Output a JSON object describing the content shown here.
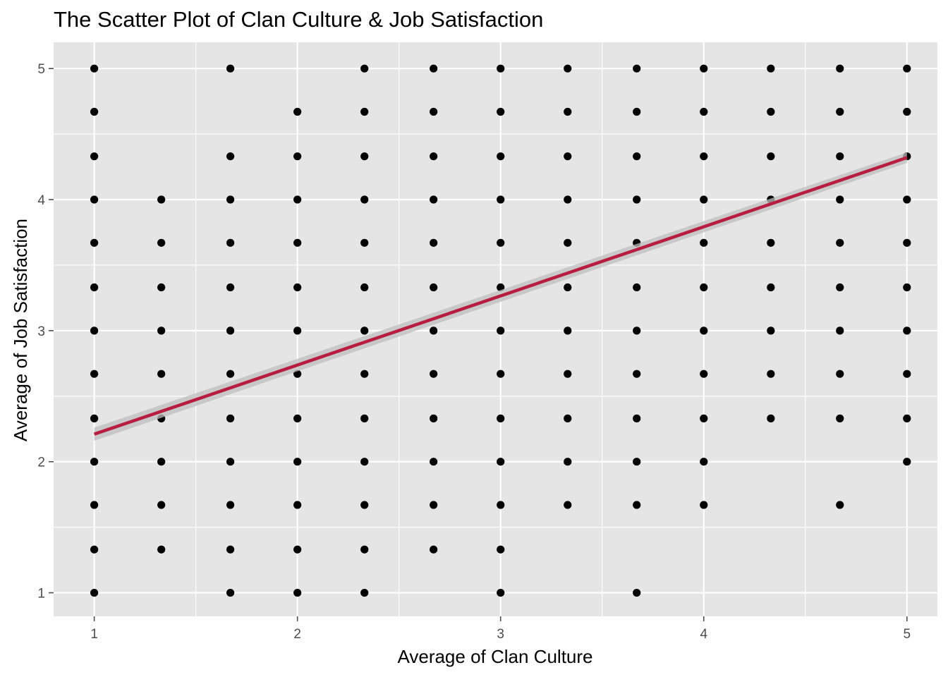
{
  "chart_data": {
    "type": "scatter",
    "title": "The Scatter Plot of Clan Culture & Job Satisfaction",
    "xlabel": "Average of Clan Culture",
    "ylabel": "Average of Job Satisfaction",
    "xlim": [
      0.8,
      5.15
    ],
    "ylim": [
      0.82,
      5.2
    ],
    "x_ticks": [
      1,
      2,
      3,
      4,
      5
    ],
    "y_ticks": [
      1,
      2,
      3,
      4,
      5
    ],
    "x_tick_labels": [
      "1",
      "2",
      "3",
      "4",
      "5"
    ],
    "y_tick_labels": [
      "1",
      "2",
      "3",
      "4",
      "5"
    ],
    "grid": true,
    "legend": "none",
    "colors": {
      "panel": "#e5e5e5",
      "grid": "#ffffff",
      "point": "#000000",
      "fit_line": "#b81d3f",
      "ci_band": "#bdbdbd",
      "tick": "#4d4d4d"
    },
    "points": [
      {
        "x": 1,
        "y": [
          5,
          4.67,
          4.33,
          4,
          3.67,
          3.33,
          3,
          2.67,
          2.33,
          2,
          1.67,
          1.33,
          1
        ]
      },
      {
        "x": 1.33,
        "y": [
          4,
          3.67,
          3.33,
          3,
          2.67,
          2.33,
          2,
          1.67,
          1.33
        ]
      },
      {
        "x": 1.67,
        "y": [
          5,
          4.33,
          4,
          3.67,
          3.33,
          3,
          2.67,
          2.33,
          2,
          1.67,
          1.33,
          1
        ]
      },
      {
        "x": 2,
        "y": [
          4.67,
          4.33,
          4,
          3.67,
          3.33,
          3,
          2.67,
          2.33,
          2,
          1.67,
          1.33,
          1
        ]
      },
      {
        "x": 2.33,
        "y": [
          5,
          4.67,
          4.33,
          4,
          3.67,
          3.33,
          3,
          2.67,
          2.33,
          2,
          1.67,
          1.33,
          1
        ]
      },
      {
        "x": 2.67,
        "y": [
          5,
          4.67,
          4.33,
          4,
          3.67,
          3.33,
          3,
          2.67,
          2.33,
          2,
          1.67,
          1.33
        ]
      },
      {
        "x": 3,
        "y": [
          5,
          4.67,
          4.33,
          4,
          3.67,
          3.33,
          3,
          2.67,
          2.33,
          2,
          1.67,
          1.33,
          1
        ]
      },
      {
        "x": 3.33,
        "y": [
          5,
          4.67,
          4.33,
          4,
          3.67,
          3.33,
          3,
          2.67,
          2.33,
          2,
          1.67
        ]
      },
      {
        "x": 3.67,
        "y": [
          5,
          4.67,
          4.33,
          4,
          3.67,
          3.33,
          3,
          2.67,
          2.33,
          2,
          1.67,
          1
        ]
      },
      {
        "x": 4,
        "y": [
          5,
          4.67,
          4.33,
          4,
          3.67,
          3.33,
          3,
          2.67,
          2.33,
          2,
          1.67
        ]
      },
      {
        "x": 4.33,
        "y": [
          5,
          4.67,
          4.33,
          4,
          3.67,
          3.33,
          3,
          2.67,
          2.33
        ]
      },
      {
        "x": 4.67,
        "y": [
          5,
          4.67,
          4.33,
          4,
          3.67,
          3.33,
          3,
          2.67,
          2.33,
          1.67
        ]
      },
      {
        "x": 5,
        "y": [
          5,
          4.67,
          4.33,
          4,
          3.67,
          3.33,
          3,
          2.67,
          2.33,
          2
        ]
      }
    ],
    "fit_line": {
      "method": "linear",
      "x": [
        1,
        5
      ],
      "y": [
        2.21,
        4.32
      ],
      "ci_halfwidth": [
        0.05,
        0.04
      ]
    }
  }
}
